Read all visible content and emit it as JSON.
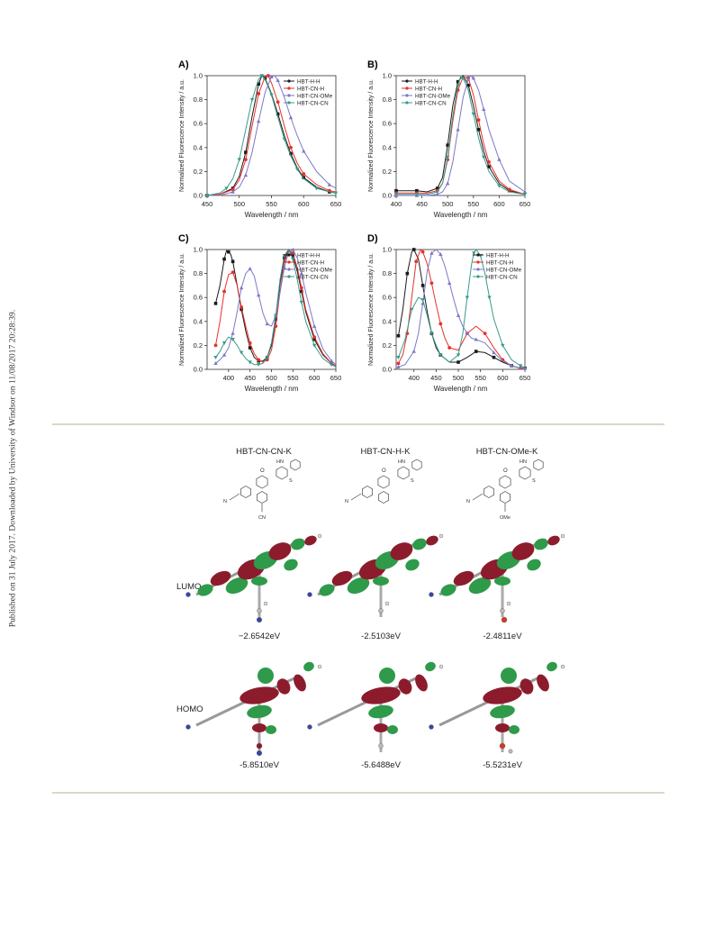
{
  "side_note": "Published on 31 July 2017. Downloaded by University of Windsor on 11/08/2017 20:28:39.",
  "series_colors": {
    "HBT-H-H": "#1a1a1a",
    "HBT-CN-H": "#e8302a",
    "HBT-CN-OMe": "#7a78c8",
    "HBT-CN-CN": "#3a9a8a"
  },
  "chart_data": [
    {
      "panel": "A)",
      "type": "line",
      "xlabel": "Wavelength / nm",
      "ylabel": "Normalized Fluorescence Intensity / a.u.",
      "xlim": [
        450,
        650
      ],
      "ylim": [
        0.0,
        1.0
      ],
      "xticks": [
        "450",
        "500",
        "550",
        "600",
        "650"
      ],
      "yticks": [
        "0.0",
        "0.2",
        "0.4",
        "0.6",
        "0.8",
        "1.0"
      ],
      "legend_position": "top-right",
      "series": [
        {
          "name": "HBT-H-H",
          "x": [
            450,
            470,
            490,
            500,
            510,
            520,
            530,
            535,
            540,
            550,
            560,
            570,
            580,
            590,
            600,
            620,
            640,
            650
          ],
          "y": [
            0.0,
            0.01,
            0.06,
            0.16,
            0.36,
            0.66,
            0.93,
            1.0,
            0.98,
            0.85,
            0.68,
            0.5,
            0.35,
            0.23,
            0.15,
            0.07,
            0.03,
            0.02
          ]
        },
        {
          "name": "HBT-CN-H",
          "x": [
            450,
            470,
            490,
            500,
            510,
            520,
            530,
            540,
            545,
            550,
            560,
            570,
            580,
            590,
            600,
            620,
            640,
            650
          ],
          "y": [
            0.0,
            0.01,
            0.05,
            0.13,
            0.3,
            0.58,
            0.85,
            0.99,
            1.0,
            0.94,
            0.78,
            0.58,
            0.4,
            0.27,
            0.18,
            0.09,
            0.04,
            0.03
          ]
        },
        {
          "name": "HBT-CN-OMe",
          "x": [
            450,
            470,
            490,
            500,
            510,
            520,
            530,
            540,
            550,
            555,
            560,
            570,
            580,
            590,
            600,
            620,
            640,
            650
          ],
          "y": [
            0.0,
            0.0,
            0.03,
            0.07,
            0.17,
            0.36,
            0.62,
            0.86,
            0.99,
            1.0,
            0.96,
            0.82,
            0.65,
            0.5,
            0.37,
            0.2,
            0.09,
            0.06
          ]
        },
        {
          "name": "HBT-CN-CN",
          "x": [
            450,
            470,
            480,
            490,
            500,
            510,
            520,
            530,
            535,
            540,
            550,
            560,
            570,
            580,
            590,
            600,
            620,
            640,
            650
          ],
          "y": [
            0.0,
            0.02,
            0.06,
            0.14,
            0.3,
            0.55,
            0.8,
            0.97,
            1.0,
            0.97,
            0.84,
            0.65,
            0.47,
            0.33,
            0.22,
            0.14,
            0.06,
            0.03,
            0.02
          ]
        }
      ]
    },
    {
      "panel": "B)",
      "type": "line",
      "xlabel": "Wavelength / nm",
      "ylabel": "Normalized Fluorescence Intensity / a.u.",
      "xlim": [
        400,
        650
      ],
      "ylim": [
        0.0,
        1.0
      ],
      "xticks": [
        "400",
        "450",
        "500",
        "550",
        "600",
        "650"
      ],
      "yticks": [
        "0.0",
        "0.2",
        "0.4",
        "0.6",
        "0.8",
        "1.0"
      ],
      "legend_position": "top-left",
      "series": [
        {
          "name": "HBT-H-H",
          "x": [
            400,
            420,
            440,
            460,
            480,
            490,
            500,
            510,
            520,
            530,
            540,
            550,
            560,
            570,
            580,
            600,
            620,
            650
          ],
          "y": [
            0.04,
            0.04,
            0.04,
            0.03,
            0.06,
            0.15,
            0.42,
            0.75,
            0.95,
            1.0,
            0.92,
            0.75,
            0.55,
            0.37,
            0.24,
            0.1,
            0.04,
            0.01
          ]
        },
        {
          "name": "HBT-CN-H",
          "x": [
            400,
            420,
            440,
            460,
            480,
            490,
            500,
            510,
            520,
            530,
            540,
            550,
            560,
            570,
            580,
            600,
            620,
            650
          ],
          "y": [
            0.02,
            0.02,
            0.02,
            0.02,
            0.04,
            0.1,
            0.3,
            0.62,
            0.88,
            0.99,
            0.98,
            0.84,
            0.63,
            0.43,
            0.28,
            0.12,
            0.05,
            0.01
          ]
        },
        {
          "name": "HBT-CN-OMe",
          "x": [
            400,
            420,
            440,
            460,
            480,
            490,
            500,
            510,
            520,
            530,
            540,
            545,
            550,
            560,
            570,
            580,
            600,
            620,
            650
          ],
          "y": [
            0.0,
            0.0,
            0.0,
            0.0,
            0.01,
            0.03,
            0.1,
            0.28,
            0.55,
            0.82,
            0.97,
            1.0,
            0.98,
            0.88,
            0.72,
            0.55,
            0.3,
            0.12,
            0.03
          ]
        },
        {
          "name": "HBT-CN-CN",
          "x": [
            400,
            420,
            440,
            460,
            480,
            490,
            500,
            510,
            520,
            525,
            530,
            540,
            550,
            560,
            570,
            580,
            600,
            620,
            650
          ],
          "y": [
            0.01,
            0.01,
            0.01,
            0.01,
            0.03,
            0.1,
            0.32,
            0.66,
            0.92,
            0.99,
            0.98,
            0.88,
            0.68,
            0.48,
            0.32,
            0.2,
            0.08,
            0.03,
            0.01
          ]
        }
      ]
    },
    {
      "panel": "C)",
      "type": "line",
      "xlabel": "Wavelength / nm",
      "ylabel": "Normalized Fluorescence Intensity / a.u.",
      "xlim": [
        350,
        650
      ],
      "ylim": [
        0.0,
        1.0
      ],
      "xticks": [
        "400",
        "450",
        "500",
        "550",
        "600",
        "650"
      ],
      "yticks": [
        "0.0",
        "0.2",
        "0.4",
        "0.6",
        "0.8",
        "1.0"
      ],
      "legend_position": "top-right",
      "series": [
        {
          "name": "HBT-H-H",
          "x": [
            370,
            380,
            390,
            395,
            400,
            405,
            410,
            420,
            430,
            440,
            450,
            460,
            470,
            480,
            490,
            500,
            510,
            520,
            530,
            540,
            550,
            560,
            570,
            580,
            600,
            620,
            640,
            650
          ],
          "y": [
            0.55,
            0.7,
            0.92,
            0.99,
            0.98,
            0.96,
            0.9,
            0.7,
            0.5,
            0.32,
            0.18,
            0.1,
            0.07,
            0.07,
            0.1,
            0.2,
            0.42,
            0.72,
            0.93,
            1.0,
            0.95,
            0.82,
            0.65,
            0.48,
            0.25,
            0.12,
            0.05,
            0.03
          ]
        },
        {
          "name": "HBT-CN-H",
          "x": [
            370,
            380,
            390,
            400,
            410,
            420,
            430,
            440,
            450,
            460,
            470,
            480,
            490,
            500,
            510,
            520,
            530,
            540,
            550,
            560,
            570,
            580,
            600,
            620,
            640,
            650
          ],
          "y": [
            0.2,
            0.4,
            0.65,
            0.79,
            0.81,
            0.7,
            0.52,
            0.36,
            0.22,
            0.13,
            0.08,
            0.06,
            0.08,
            0.16,
            0.36,
            0.65,
            0.9,
            0.99,
            0.97,
            0.85,
            0.68,
            0.5,
            0.27,
            0.13,
            0.05,
            0.03
          ]
        },
        {
          "name": "HBT-CN-OMe",
          "x": [
            370,
            380,
            390,
            400,
            410,
            420,
            430,
            440,
            450,
            460,
            470,
            480,
            490,
            500,
            510,
            520,
            530,
            540,
            550,
            560,
            570,
            580,
            600,
            620,
            640,
            650
          ],
          "y": [
            0.05,
            0.08,
            0.12,
            0.18,
            0.3,
            0.48,
            0.68,
            0.8,
            0.84,
            0.78,
            0.62,
            0.47,
            0.38,
            0.36,
            0.45,
            0.64,
            0.85,
            0.98,
            1.0,
            0.93,
            0.8,
            0.64,
            0.36,
            0.17,
            0.07,
            0.04
          ]
        },
        {
          "name": "HBT-CN-CN",
          "x": [
            370,
            380,
            390,
            400,
            410,
            420,
            430,
            440,
            450,
            460,
            470,
            480,
            490,
            500,
            510,
            520,
            530,
            540,
            550,
            560,
            570,
            580,
            600,
            620,
            640,
            650
          ],
          "y": [
            0.1,
            0.15,
            0.22,
            0.27,
            0.25,
            0.2,
            0.14,
            0.09,
            0.06,
            0.04,
            0.04,
            0.05,
            0.1,
            0.22,
            0.45,
            0.75,
            0.95,
            1.0,
            0.92,
            0.75,
            0.56,
            0.4,
            0.2,
            0.09,
            0.04,
            0.02
          ]
        }
      ]
    },
    {
      "panel": "D)",
      "type": "line",
      "xlabel": "Wavelength / nm",
      "ylabel": "Normalized Fluorescence Intensity / a.u.",
      "xlim": [
        360,
        650
      ],
      "ylim": [
        0.0,
        1.0
      ],
      "xticks": [
        "400",
        "450",
        "500",
        "550",
        "600",
        "650"
      ],
      "yticks": [
        "0.0",
        "0.2",
        "0.4",
        "0.6",
        "0.8",
        "1.0"
      ],
      "legend_position": "top-right",
      "series": [
        {
          "name": "HBT-H-H",
          "x": [
            365,
            375,
            385,
            395,
            400,
            410,
            420,
            430,
            440,
            450,
            460,
            480,
            500,
            520,
            540,
            560,
            580,
            600,
            620,
            640,
            650
          ],
          "y": [
            0.28,
            0.5,
            0.8,
            0.98,
            1.0,
            0.92,
            0.7,
            0.48,
            0.3,
            0.18,
            0.12,
            0.06,
            0.06,
            0.1,
            0.15,
            0.14,
            0.1,
            0.06,
            0.03,
            0.01,
            0.01
          ]
        },
        {
          "name": "HBT-CN-H",
          "x": [
            365,
            375,
            385,
            395,
            405,
            415,
            420,
            430,
            440,
            450,
            460,
            470,
            480,
            500,
            520,
            540,
            560,
            580,
            600,
            620,
            640,
            650
          ],
          "y": [
            0.05,
            0.12,
            0.3,
            0.6,
            0.9,
            1.0,
            0.98,
            0.88,
            0.72,
            0.54,
            0.38,
            0.26,
            0.18,
            0.16,
            0.3,
            0.36,
            0.3,
            0.18,
            0.08,
            0.03,
            0.01,
            0.01
          ]
        },
        {
          "name": "HBT-CN-OMe",
          "x": [
            365,
            380,
            400,
            410,
            420,
            430,
            440,
            450,
            460,
            470,
            480,
            490,
            500,
            510,
            520,
            530,
            540,
            560,
            580,
            600,
            620,
            640,
            650
          ],
          "y": [
            0.02,
            0.04,
            0.15,
            0.3,
            0.55,
            0.82,
            0.97,
            1.0,
            0.96,
            0.86,
            0.72,
            0.58,
            0.45,
            0.36,
            0.3,
            0.26,
            0.25,
            0.22,
            0.14,
            0.07,
            0.03,
            0.01,
            0.01
          ]
        },
        {
          "name": "HBT-CN-CN",
          "x": [
            365,
            380,
            395,
            410,
            420,
            430,
            440,
            450,
            460,
            480,
            500,
            510,
            520,
            530,
            535,
            540,
            550,
            560,
            570,
            580,
            600,
            620,
            640,
            650
          ],
          "y": [
            0.1,
            0.25,
            0.5,
            0.6,
            0.58,
            0.45,
            0.3,
            0.2,
            0.12,
            0.06,
            0.12,
            0.3,
            0.6,
            0.88,
            0.97,
            1.0,
            0.95,
            0.8,
            0.6,
            0.42,
            0.2,
            0.08,
            0.03,
            0.01
          ]
        }
      ]
    }
  ],
  "mo_figure": {
    "columns": [
      {
        "title": "HBT-CN-CN-K",
        "lumo_energy": "−2.6542eV",
        "homo_energy": "-5.8510eV",
        "sub_label": "CN"
      },
      {
        "title": "HBT-CN-H-K",
        "lumo_energy": "-2.5103eV",
        "homo_energy": "-5.6488eV",
        "sub_label": ""
      },
      {
        "title": "HBT-CN-OMe-K",
        "lumo_energy": "-2.4811eV",
        "homo_energy": "-5.5231eV",
        "sub_label": "OMe"
      }
    ],
    "row_labels": {
      "lumo": "LUMO",
      "homo": "HOMO"
    },
    "struct_labels": {
      "oxygen": "O",
      "nh": "HN",
      "sulfur": "S",
      "nitrile_n": "N"
    },
    "orbital_colors": {
      "positive": "#8c1c2c",
      "negative": "#2e9a4a"
    }
  }
}
